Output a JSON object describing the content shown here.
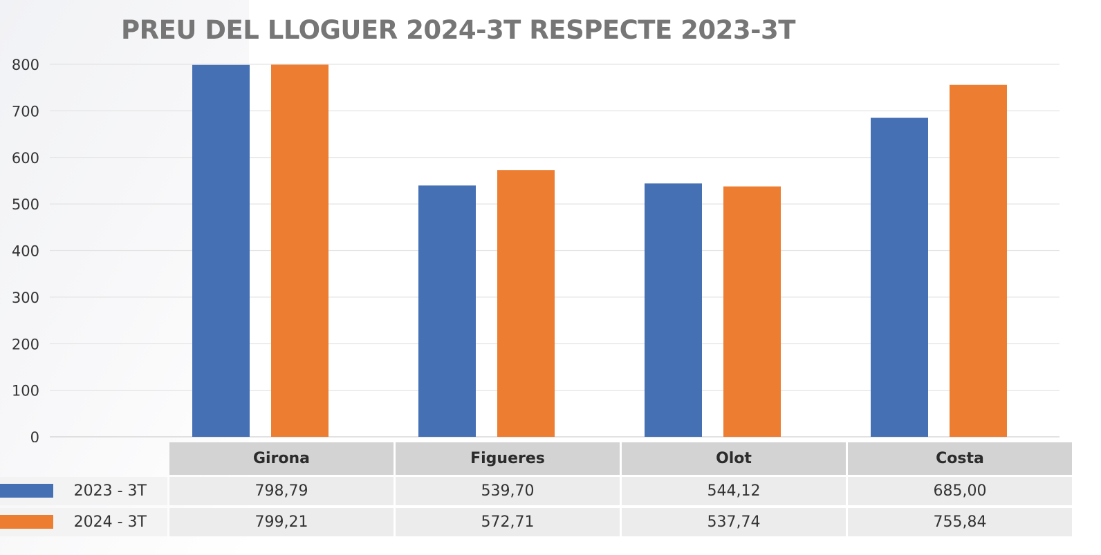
{
  "chart_data": {
    "type": "bar",
    "title": "PREU DEL LLOGUER 2024-3T RESPECTE 2023-3T",
    "categories": [
      "Girona",
      "Figueres",
      "Olot",
      "Costa"
    ],
    "series": [
      {
        "name": "2023 - 3T",
        "color": "#4570b4",
        "values": [
          798.79,
          539.7,
          544.12,
          685.0
        ],
        "labels": [
          "798,79",
          "539,70",
          "544,12",
          "685,00"
        ]
      },
      {
        "name": "2024 - 3T",
        "color": "#ed7d31",
        "values": [
          799.21,
          572.71,
          537.74,
          755.84
        ],
        "labels": [
          "799,21",
          "572,71",
          "537,74",
          "755,84"
        ]
      }
    ],
    "yticks": [
      "0",
      "100",
      "200",
      "300",
      "400",
      "500",
      "600",
      "700",
      "800"
    ],
    "ylim": [
      0,
      800
    ],
    "grid": true,
    "legend": "data-table"
  }
}
